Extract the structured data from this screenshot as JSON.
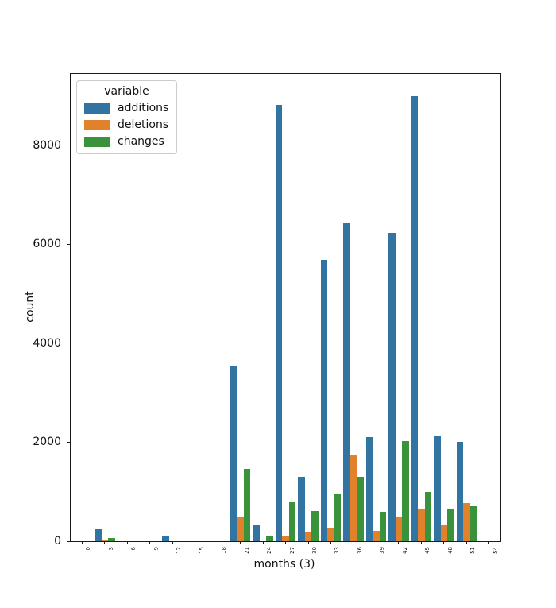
{
  "figure": {
    "background": "#ffffff",
    "xlabel": "months (3)",
    "ylabel": "count",
    "legend": {
      "title": "variable"
    }
  },
  "chart_data": {
    "type": "bar",
    "title": "",
    "xlabel": "months (3)",
    "ylabel": "count",
    "categories": [
      "0",
      "3",
      "6",
      "9",
      "12",
      "15",
      "18",
      "21",
      "24",
      "27",
      "30",
      "33",
      "36",
      "39",
      "42",
      "45",
      "48",
      "51",
      "54"
    ],
    "series": [
      {
        "name": "additions",
        "color": "#3274a1",
        "values": [
          0,
          250,
          0,
          0,
          115,
          0,
          0,
          3550,
          340,
          8820,
          1300,
          5690,
          6440,
          2110,
          6230,
          8990,
          2120,
          2000,
          0
        ]
      },
      {
        "name": "deletions",
        "color": "#e1812c",
        "values": [
          0,
          25,
          0,
          0,
          0,
          0,
          0,
          490,
          0,
          120,
          200,
          270,
          1730,
          210,
          500,
          640,
          320,
          770,
          0
        ]
      },
      {
        "name": "changes",
        "color": "#3a923a",
        "values": [
          0,
          60,
          0,
          0,
          0,
          0,
          0,
          1460,
          100,
          790,
          610,
          970,
          1300,
          600,
          2020,
          1000,
          650,
          700,
          0
        ]
      }
    ],
    "ylim": [
      0,
      9440
    ],
    "yticks": [
      0,
      2000,
      4000,
      6000,
      8000
    ],
    "ytick_labels": [
      "0",
      "2000",
      "4000",
      "6000",
      "8000"
    ],
    "grid": false,
    "legend_position": "upper left",
    "legend_title": "variable"
  }
}
